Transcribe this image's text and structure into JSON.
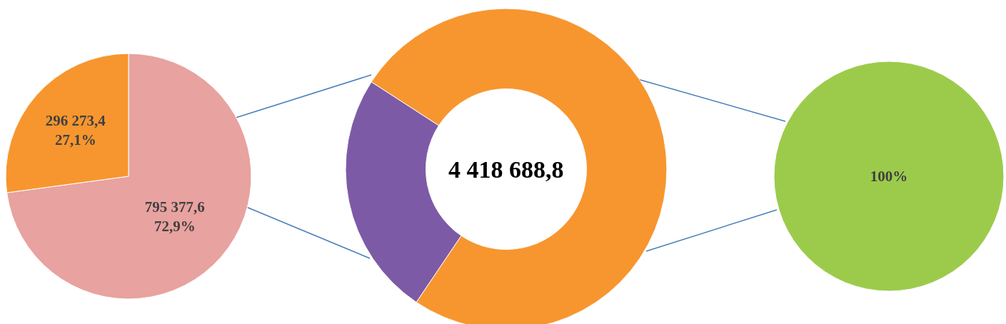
{
  "chart_data": [
    {
      "type": "pie",
      "categories": [
        null,
        null
      ],
      "values": [
        795377.6,
        296273.4
      ],
      "colors": [
        "#e8a2a0",
        "#f7962f"
      ],
      "value_labels": [
        "795 377,6\n72,9%",
        "296 273,4\n27,1%"
      ]
    },
    {
      "type": "donut",
      "categories": [
        null,
        null
      ],
      "values": [
        24.7,
        75.3
      ],
      "colors": [
        "#7d5aa6",
        "#f7962f"
      ],
      "annotations": [
        "4 418 688,8"
      ]
    },
    {
      "type": "pie",
      "categories": [
        null
      ],
      "values": [
        100
      ],
      "colors": [
        "#9ccb4c"
      ],
      "value_labels": [
        "100%"
      ]
    }
  ]
}
